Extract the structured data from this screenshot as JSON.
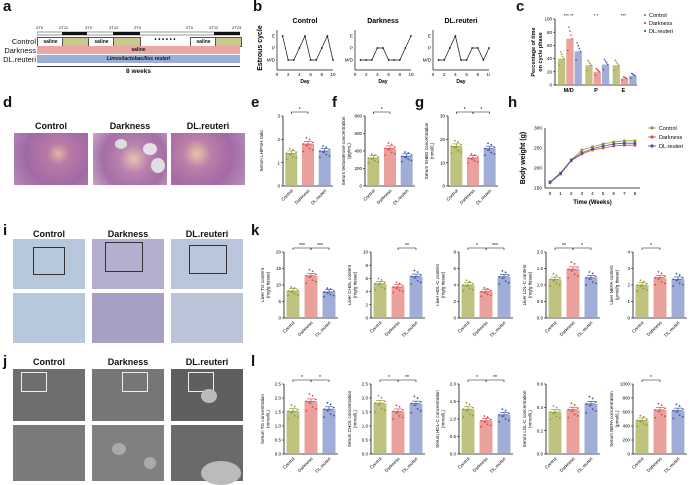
{
  "colors": {
    "control": "#b5b86a",
    "darkness": "#e8908a",
    "reuteri": "#8f9fcf",
    "control_dot": "#8e9a2e",
    "darkness_dot": "#d9474a",
    "reuteri_dot": "#3f55a6"
  },
  "panel_labels": {
    "a": "a",
    "b": "b",
    "c": "c",
    "d": "d",
    "e": "e",
    "f": "f",
    "g": "g",
    "h": "h",
    "i": "i",
    "j": "j",
    "k": "k",
    "l": "l"
  },
  "panel_a": {
    "zt_labels": [
      "ZT0",
      "ZT12",
      "ZT0",
      "ZT12",
      "ZT0",
      "ZT0",
      "ZT12",
      "ZT24"
    ],
    "rows": [
      {
        "label": "Control",
        "segments": [
          "saline",
          "saline",
          "saline"
        ]
      },
      {
        "label": "Darkness",
        "text": "saline"
      },
      {
        "label": "DL.reuteri",
        "text": "Limosilactobacillus reuteri"
      }
    ],
    "dots": "• • • • • •",
    "duration": "8 weeks"
  },
  "groups": [
    "Control",
    "Darkness",
    "DL.reuteri"
  ],
  "chart_data": [
    {
      "id": "b",
      "type": "line",
      "title": "Estrous cycle",
      "ylabel": "Estrous cycle",
      "xlabel": "Day",
      "yticks": [
        "M/D",
        "P",
        "E"
      ],
      "xticks": [
        0,
        2,
        4,
        6,
        8,
        10
      ],
      "series": [
        {
          "name": "Control",
          "x": [
            1,
            2,
            3,
            4,
            5,
            6,
            7,
            8,
            9,
            10
          ],
          "values": [
            "E",
            "M/D",
            "M/D",
            "P",
            "E",
            "M/D",
            "M/D",
            "P",
            "E",
            "M/D"
          ]
        },
        {
          "name": "Darkness",
          "x": [
            1,
            2,
            3,
            4,
            5,
            6,
            7,
            8,
            9,
            10
          ],
          "values": [
            "M/D",
            "M/D",
            "M/D",
            "P",
            "P",
            "M/D",
            "M/D",
            "M/D",
            "P",
            "E"
          ]
        },
        {
          "name": "DL.reuteri",
          "x": [
            1,
            2,
            3,
            4,
            5,
            6,
            7,
            8,
            9,
            10
          ],
          "values": [
            "M/D",
            "M/D",
            "P",
            "E",
            "M/D",
            "M/D",
            "P",
            "P",
            "M/D",
            "P"
          ]
        }
      ]
    },
    {
      "id": "c",
      "type": "bar",
      "ylabel": "Percentage of time on cycle phase",
      "categories": [
        "M/D",
        "P",
        "E"
      ],
      "ylim": [
        0,
        100
      ],
      "yticks": [
        0,
        20,
        40,
        60,
        80,
        100
      ],
      "legend": [
        "Control",
        "Darkness",
        "DL.reuteri"
      ],
      "series": [
        {
          "name": "Control",
          "values": [
            40,
            30,
            30
          ]
        },
        {
          "name": "Darkness",
          "values": [
            70,
            20,
            10
          ]
        },
        {
          "name": "DL.reuteri",
          "values": [
            51,
            31,
            14
          ]
        }
      ],
      "significance": [
        {
          "cat": "M/D",
          "labels": [
            "***",
            "**"
          ]
        },
        {
          "cat": "P",
          "labels": [
            "*",
            "*"
          ]
        },
        {
          "cat": "E",
          "labels": [
            "***"
          ]
        }
      ]
    },
    {
      "id": "e",
      "type": "bar",
      "ylabel": "Serum LH/FSH ratio",
      "categories": [
        "Control",
        "Darkness",
        "DL.reuteri"
      ],
      "values": [
        1.4,
        1.8,
        1.5
      ],
      "ylim": [
        0,
        3
      ],
      "yticks": [
        0,
        1,
        2,
        3
      ],
      "sig": [
        {
          "from": 0,
          "to": 1,
          "label": "*"
        }
      ]
    },
    {
      "id": "f",
      "type": "bar",
      "ylabel": "Serum testosterone concentration (pg/mL)",
      "categories": [
        "Control",
        "Darkness",
        "DL.reuteri"
      ],
      "values": [
        320,
        430,
        340
      ],
      "ylim": [
        0,
        800
      ],
      "yticks": [
        0,
        200,
        400,
        600,
        800
      ],
      "sig": [
        {
          "from": 0,
          "to": 1,
          "label": "*"
        }
      ]
    },
    {
      "id": "g",
      "type": "bar",
      "ylabel": "Serum SHBG concentration (nmol/L)",
      "categories": [
        "Control",
        "Darkness",
        "DL.reuteri"
      ],
      "values": [
        17,
        12,
        16
      ],
      "ylim": [
        0,
        30
      ],
      "yticks": [
        0,
        10,
        20,
        30
      ],
      "sig": [
        {
          "from": 0,
          "to": 1,
          "label": "*"
        },
        {
          "from": 1,
          "to": 2,
          "label": "*"
        }
      ]
    },
    {
      "id": "h",
      "type": "line",
      "ylabel": "Body weight (g)",
      "xlabel": "Time (Weeks)",
      "x": [
        0,
        1,
        2,
        3,
        4,
        5,
        6,
        7,
        8
      ],
      "ylim": [
        150,
        300
      ],
      "yticks": [
        150,
        200,
        250,
        300
      ],
      "series": [
        {
          "name": "Control",
          "values": [
            165,
            188,
            220,
            245,
            253,
            260,
            265,
            268,
            268
          ]
        },
        {
          "name": "Darkness",
          "values": [
            163,
            185,
            218,
            235,
            245,
            250,
            255,
            257,
            257
          ]
        },
        {
          "name": "DL.reuteri",
          "values": [
            165,
            187,
            220,
            238,
            248,
            255,
            260,
            262,
            262
          ]
        }
      ]
    },
    {
      "id": "k1",
      "type": "bar",
      "ylabel": "Liver TG content (mg/g tissue)",
      "categories": [
        "Control",
        "Darkness",
        "DL.reuteri"
      ],
      "values": [
        8.2,
        12.8,
        7.9
      ],
      "ylim": [
        0,
        20
      ],
      "yticks": [
        0,
        5,
        10,
        15,
        20
      ],
      "sig": [
        {
          "from": 0,
          "to": 1,
          "label": "***"
        },
        {
          "from": 1,
          "to": 2,
          "label": "***"
        }
      ]
    },
    {
      "id": "k2",
      "type": "bar",
      "ylabel": "Liver CHOL content (mg/g tissue)",
      "categories": [
        "Control",
        "Darkness",
        "DL.reuteri"
      ],
      "values": [
        5.2,
        4.7,
        6.3
      ],
      "ylim": [
        0,
        10
      ],
      "yticks": [
        0,
        2,
        4,
        6,
        8,
        10
      ],
      "sig": [
        {
          "from": 1,
          "to": 2,
          "label": "**"
        }
      ]
    },
    {
      "id": "k3",
      "type": "bar",
      "ylabel": "Liver HDL-C content (mg/g tissue)",
      "categories": [
        "Control",
        "Darkness",
        "DL.reuteri"
      ],
      "values": [
        4.0,
        3.2,
        5.0
      ],
      "ylim": [
        0,
        8
      ],
      "yticks": [
        0,
        2,
        4,
        6,
        8
      ],
      "sig": [
        {
          "from": 0,
          "to": 1,
          "label": "*"
        },
        {
          "from": 1,
          "to": 2,
          "label": "***"
        }
      ]
    },
    {
      "id": "k4",
      "type": "bar",
      "ylabel": "Liver LDL-C content (mg/g tissue)",
      "categories": [
        "Control",
        "Darkness",
        "DL.reuteri"
      ],
      "values": [
        1.17,
        1.48,
        1.22
      ],
      "ylim": [
        0,
        2
      ],
      "yticks": [
        "0.0",
        "0.5",
        "1.0",
        "1.5",
        "2.0"
      ],
      "sig": [
        {
          "from": 0,
          "to": 1,
          "label": "**"
        },
        {
          "from": 1,
          "to": 2,
          "label": "*"
        }
      ]
    },
    {
      "id": "k5",
      "type": "bar",
      "ylabel": "Liver NEFA content (μmol/g tissue)",
      "categories": [
        "Control",
        "Darkness",
        "DL.reuteri"
      ],
      "values": [
        2.0,
        2.45,
        2.35
      ],
      "ylim": [
        0,
        4
      ],
      "yticks": [
        0,
        1,
        2,
        3,
        4
      ],
      "sig": [
        {
          "from": 0,
          "to": 1,
          "label": "*"
        }
      ]
    },
    {
      "id": "l1",
      "type": "bar",
      "ylabel": "Serum TG concentration (mmol/L)",
      "categories": [
        "Control",
        "Darkness",
        "DL.reuteri"
      ],
      "values": [
        1.53,
        1.88,
        1.6
      ],
      "ylim": [
        0,
        2.5
      ],
      "yticks": [
        "0.0",
        "0.5",
        "1.0",
        "1.5",
        "2.0",
        "2.5"
      ],
      "sig": [
        {
          "from": 0,
          "to": 1,
          "label": "*"
        },
        {
          "from": 1,
          "to": 2,
          "label": "*"
        }
      ]
    },
    {
      "id": "l2",
      "type": "bar",
      "ylabel": "Serum CHOL concentration (mmol/L)",
      "categories": [
        "Control",
        "Darkness",
        "DL.reuteri"
      ],
      "values": [
        1.82,
        1.52,
        1.8
      ],
      "ylim": [
        0,
        2.5
      ],
      "yticks": [
        "0.0",
        "0.5",
        "1.0",
        "1.5",
        "2.0",
        "2.5"
      ],
      "sig": [
        {
          "from": 0,
          "to": 1,
          "label": "*"
        },
        {
          "from": 1,
          "to": 2,
          "label": "**"
        }
      ]
    },
    {
      "id": "l3",
      "type": "bar",
      "ylabel": "Serum HDL-C concentration (mmol/L)",
      "categories": [
        "Control",
        "Darkness",
        "DL.reuteri"
      ],
      "values": [
        1.28,
        0.95,
        1.12
      ],
      "ylim": [
        0,
        2
      ],
      "yticks": [
        "0.0",
        "0.5",
        "1.0",
        "1.5",
        "2.0"
      ],
      "sig": [
        {
          "from": 0,
          "to": 1,
          "label": "*"
        },
        {
          "from": 1,
          "to": 2,
          "label": "**"
        }
      ]
    },
    {
      "id": "l4",
      "type": "bar",
      "ylabel": "Serum LDL-C concentration (mmol/L)",
      "categories": [
        "Control",
        "Darkness",
        "DL.reuteri"
      ],
      "values": [
        0.36,
        0.38,
        0.43
      ],
      "ylim": [
        0,
        0.6
      ],
      "yticks": [
        "0.0",
        "0.2",
        "0.4",
        "0.6"
      ],
      "sig": []
    },
    {
      "id": "l5",
      "type": "bar",
      "ylabel": "Serum NEFA concentration (μmol/L)",
      "categories": [
        "Control",
        "Darkness",
        "DL.reuteri"
      ],
      "values": [
        480,
        630,
        620
      ],
      "ylim": [
        0,
        1000
      ],
      "yticks": [
        0,
        200,
        400,
        600,
        800,
        1000
      ],
      "sig": [
        {
          "from": 0,
          "to": 1,
          "label": "*"
        }
      ]
    }
  ]
}
